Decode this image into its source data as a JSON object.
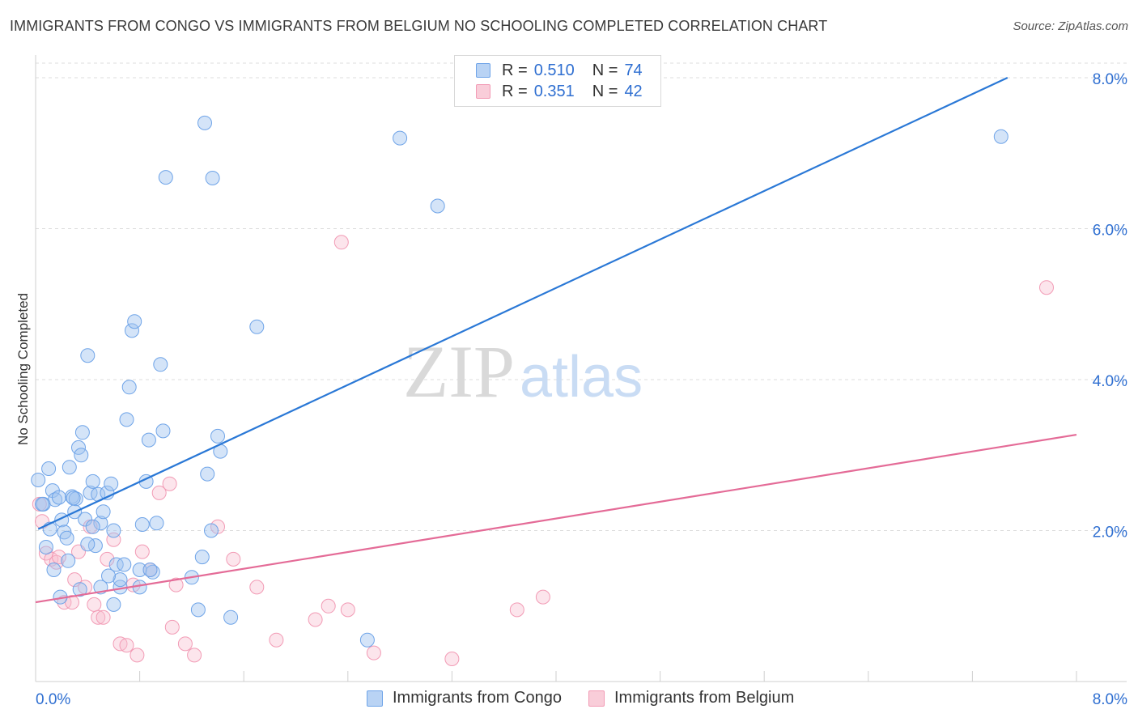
{
  "chart_data": {
    "type": "scatter",
    "title": "IMMIGRANTS FROM CONGO VS IMMIGRANTS FROM BELGIUM NO SCHOOLING COMPLETED CORRELATION CHART",
    "source": "Source: ZipAtlas.com",
    "ylabel": "No Schooling Completed",
    "xlabel": "",
    "xlim": [
      0,
      8
    ],
    "ylim": [
      0,
      8.4
    ],
    "x_tick_labels": [
      "0.0%",
      "8.0%"
    ],
    "y_tick_labels": [
      "2.0%",
      "4.0%",
      "6.0%",
      "8.0%"
    ],
    "y_tick_values": [
      2,
      4,
      6,
      8
    ],
    "watermark": "ZIPatlas",
    "colors": {
      "congo": "#6fa4e8",
      "belgium": "#f29bb5",
      "congo_line": "#2a78d6",
      "belgium_line": "#e46b97",
      "accent_text": "#2f6fd1"
    },
    "legend": {
      "congo": {
        "r_label": "R =",
        "r_value": "0.510",
        "n_label": "N =",
        "n_value": "74"
      },
      "belgium": {
        "r_label": "R =",
        "r_value": "0.351",
        "n_label": "N =",
        "n_value": "42"
      }
    },
    "series": [
      {
        "name": "Immigrants from Congo",
        "key": "congo",
        "trend": {
          "x": [
            0.02,
            7.47
          ],
          "y": [
            2.02,
            8.0
          ]
        },
        "points": [
          [
            0.02,
            2.67
          ],
          [
            0.06,
            2.35
          ],
          [
            0.1,
            2.82
          ],
          [
            0.13,
            2.53
          ],
          [
            0.15,
            2.41
          ],
          [
            0.18,
            2.44
          ],
          [
            0.2,
            2.14
          ],
          [
            0.22,
            1.98
          ],
          [
            0.24,
            1.9
          ],
          [
            0.26,
            2.84
          ],
          [
            0.28,
            2.45
          ],
          [
            0.3,
            2.25
          ],
          [
            0.31,
            2.42
          ],
          [
            0.33,
            3.1
          ],
          [
            0.35,
            3.0
          ],
          [
            0.36,
            3.3
          ],
          [
            0.38,
            2.15
          ],
          [
            0.4,
            4.32
          ],
          [
            0.42,
            2.5
          ],
          [
            0.44,
            2.65
          ],
          [
            0.46,
            1.8
          ],
          [
            0.48,
            2.48
          ],
          [
            0.5,
            2.1
          ],
          [
            0.52,
            2.25
          ],
          [
            0.55,
            2.5
          ],
          [
            0.58,
            2.62
          ],
          [
            0.6,
            2.0
          ],
          [
            0.62,
            1.55
          ],
          [
            0.65,
            1.25
          ],
          [
            0.68,
            1.55
          ],
          [
            0.7,
            3.47
          ],
          [
            0.72,
            3.9
          ],
          [
            0.74,
            4.65
          ],
          [
            0.76,
            4.77
          ],
          [
            0.8,
            1.48
          ],
          [
            0.82,
            2.08
          ],
          [
            0.85,
            2.65
          ],
          [
            0.87,
            3.2
          ],
          [
            0.9,
            1.45
          ],
          [
            0.93,
            2.1
          ],
          [
            0.96,
            4.2
          ],
          [
            0.98,
            3.32
          ],
          [
            1.0,
            6.68
          ],
          [
            1.25,
            0.95
          ],
          [
            1.28,
            1.65
          ],
          [
            1.32,
            2.75
          ],
          [
            1.35,
            2.0
          ],
          [
            1.4,
            3.25
          ],
          [
            1.42,
            3.05
          ],
          [
            1.5,
            0.85
          ],
          [
            1.3,
            7.4
          ],
          [
            1.36,
            6.67
          ],
          [
            1.7,
            4.7
          ],
          [
            2.55,
            0.55
          ],
          [
            2.8,
            7.2
          ],
          [
            3.09,
            6.3
          ],
          [
            7.42,
            7.22
          ],
          [
            0.08,
            1.78
          ],
          [
            0.14,
            1.48
          ],
          [
            0.19,
            1.12
          ],
          [
            0.25,
            1.6
          ],
          [
            0.34,
            1.22
          ],
          [
            0.4,
            1.82
          ],
          [
            0.5,
            1.25
          ],
          [
            0.6,
            1.02
          ],
          [
            0.65,
            1.35
          ],
          [
            0.8,
            1.25
          ],
          [
            0.88,
            1.48
          ],
          [
            1.2,
            1.38
          ],
          [
            0.05,
            2.35
          ],
          [
            0.11,
            2.02
          ],
          [
            0.29,
            2.43
          ],
          [
            0.44,
            2.05
          ],
          [
            0.56,
            1.4
          ]
        ]
      },
      {
        "name": "Immigrants from Belgium",
        "key": "belgium",
        "trend": {
          "x": [
            0.0,
            8.0
          ],
          "y": [
            1.05,
            3.27
          ]
        },
        "points": [
          [
            0.03,
            2.35
          ],
          [
            0.08,
            1.7
          ],
          [
            0.12,
            1.62
          ],
          [
            0.16,
            1.58
          ],
          [
            0.18,
            1.65
          ],
          [
            0.22,
            1.05
          ],
          [
            0.28,
            1.05
          ],
          [
            0.3,
            1.35
          ],
          [
            0.33,
            1.72
          ],
          [
            0.38,
            1.25
          ],
          [
            0.42,
            2.05
          ],
          [
            0.45,
            1.02
          ],
          [
            0.48,
            0.85
          ],
          [
            0.52,
            0.85
          ],
          [
            0.55,
            1.62
          ],
          [
            0.6,
            1.88
          ],
          [
            0.65,
            0.5
          ],
          [
            0.7,
            0.48
          ],
          [
            0.75,
            1.28
          ],
          [
            0.78,
            0.35
          ],
          [
            0.82,
            1.72
          ],
          [
            0.88,
            1.48
          ],
          [
            0.95,
            2.5
          ],
          [
            1.03,
            2.62
          ],
          [
            1.05,
            0.72
          ],
          [
            1.08,
            1.28
          ],
          [
            1.15,
            0.5
          ],
          [
            1.22,
            0.35
          ],
          [
            1.4,
            2.05
          ],
          [
            1.52,
            1.62
          ],
          [
            1.7,
            1.25
          ],
          [
            1.85,
            0.55
          ],
          [
            2.15,
            0.82
          ],
          [
            2.25,
            1.0
          ],
          [
            2.4,
            0.95
          ],
          [
            2.6,
            0.38
          ],
          [
            3.2,
            0.3
          ],
          [
            3.7,
            0.95
          ],
          [
            3.9,
            1.12
          ],
          [
            2.35,
            5.82
          ],
          [
            7.77,
            5.22
          ],
          [
            0.05,
            2.12
          ]
        ]
      }
    ]
  },
  "bottom_legend": {
    "congo_label": "Immigrants from Congo",
    "belgium_label": "Immigrants from Belgium"
  }
}
